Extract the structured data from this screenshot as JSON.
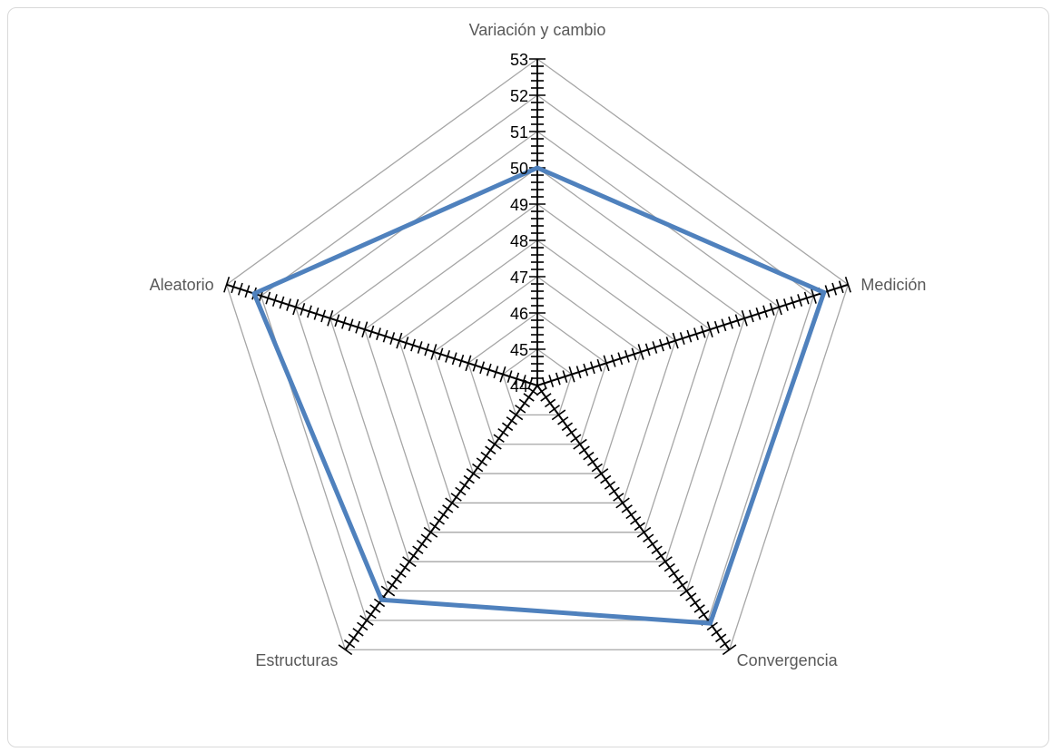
{
  "chart_data": {
    "type": "radar",
    "categories": [
      "Variación y cambio",
      "Medición",
      "Convergencia",
      "Estructuras",
      "Aleatorio"
    ],
    "series": [
      {
        "values": [
          50,
          52.3,
          52.1,
          51.3,
          52.2
        ]
      }
    ],
    "rlim": [
      44,
      53
    ],
    "ticks": [
      44,
      45,
      46,
      47,
      48,
      49,
      50,
      51,
      52,
      53
    ],
    "grid": true,
    "legend": "none"
  },
  "colors": {
    "series": "#4f81bd",
    "grid": "#a6a6a6",
    "axis": "#000000",
    "frame": "#d9d9d9"
  }
}
